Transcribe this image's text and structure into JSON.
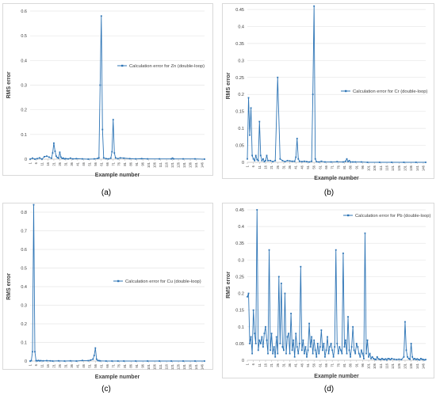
{
  "figure": {
    "panel_labels": [
      "(a)",
      "(b)",
      "(c)",
      "(d)"
    ]
  },
  "styles": {
    "series_color": "#2e75b6",
    "axis_color": "#bfbfbf",
    "grid_color": "#e6e6e6",
    "text_color": "#404040",
    "frame_color": "#d9d9d9"
  },
  "chart_data": [
    {
      "type": "line",
      "panel": "(a)",
      "xlabel": "Example number",
      "ylabel": "RMS error",
      "ylim": [
        0,
        0.6
      ],
      "yticks": [
        0,
        0.1,
        0.2,
        0.3,
        0.4,
        0.5,
        0.6
      ],
      "grid": true,
      "legend_position": "right",
      "x_tick_labels": [
        "1",
        "6",
        "11",
        "16",
        "21",
        "26",
        "31",
        "36",
        "41",
        "46",
        "51",
        "56",
        "61",
        "66",
        "71",
        "76",
        "81",
        "86",
        "91",
        "96",
        "101",
        "106",
        "111",
        "116",
        "121",
        "126",
        "131",
        "136",
        "141",
        "146"
      ],
      "series": [
        {
          "name": "Calculation error for  Zn (double-loop)",
          "x": [
            1,
            3,
            5,
            7,
            9,
            11,
            13,
            15,
            17,
            19,
            20,
            21,
            22,
            23,
            24,
            25,
            26,
            27,
            28,
            29,
            30,
            31,
            33,
            35,
            37,
            40,
            45,
            50,
            55,
            58,
            59,
            60,
            61,
            62,
            63,
            65,
            67,
            69,
            70,
            71,
            72,
            73,
            75,
            77,
            80,
            85,
            90,
            95,
            100,
            110,
            120,
            121,
            122,
            130,
            140,
            148
          ],
          "y": [
            0,
            0.004,
            0,
            0.002,
            0.005,
            0,
            0.01,
            0.012,
            0.008,
            0.004,
            0.025,
            0.065,
            0.032,
            0.012,
            0.006,
            0.004,
            0.028,
            0.008,
            0.003,
            0.004,
            0.001,
            0.002,
            0.001,
            0.004,
            0.001,
            0.002,
            0.001,
            0,
            0.001,
            0.003,
            0.005,
            0.3,
            0.58,
            0.12,
            0.005,
            0.002,
            0.001,
            0.004,
            0.03,
            0.16,
            0.025,
            0.005,
            0.002,
            0.005,
            0.004,
            0.002,
            0.001,
            0.002,
            0.001,
            0.001,
            0.001,
            0.004,
            0.001,
            0.001,
            0.001,
            0
          ]
        }
      ]
    },
    {
      "type": "line",
      "panel": "(b)",
      "xlabel": "Example number",
      "ylabel": "RMS error",
      "ylim": [
        0,
        0.45
      ],
      "yticks": [
        0,
        0.05,
        0.1,
        0.15,
        0.2,
        0.25,
        0.3,
        0.35,
        0.4,
        0.45
      ],
      "grid": true,
      "legend_position": "right",
      "x_tick_labels": [
        "1",
        "6",
        "11",
        "16",
        "21",
        "26",
        "31",
        "36",
        "41",
        "46",
        "51",
        "56",
        "61",
        "66",
        "71",
        "76",
        "81",
        "86",
        "91",
        "96",
        "101",
        "106",
        "111",
        "116",
        "121",
        "126",
        "131",
        "136",
        "141",
        "146"
      ],
      "series": [
        {
          "name": "Calculation error for  Cr (double-loop)",
          "x": [
            1,
            2,
            3,
            4,
            5,
            6,
            7,
            8,
            9,
            10,
            11,
            12,
            13,
            14,
            15,
            16,
            17,
            18,
            20,
            22,
            24,
            26,
            28,
            30,
            32,
            34,
            36,
            38,
            40,
            41,
            42,
            43,
            44,
            46,
            48,
            50,
            52,
            54,
            55,
            56,
            57,
            58,
            60,
            62,
            65,
            70,
            75,
            80,
            82,
            83,
            84,
            85,
            86,
            88,
            90,
            95,
            100,
            110,
            120,
            130,
            140,
            148
          ],
          "y": [
            0.01,
            0.19,
            0.08,
            0.16,
            0.02,
            0.01,
            0.005,
            0.02,
            0.008,
            0.005,
            0.12,
            0.02,
            0.005,
            0.01,
            0.002,
            0.005,
            0.02,
            0.005,
            0.005,
            0.002,
            0.005,
            0.25,
            0.01,
            0.005,
            0.002,
            0.005,
            0.004,
            0.003,
            0.003,
            0.015,
            0.07,
            0.01,
            0.003,
            0.002,
            0.003,
            0.002,
            0.001,
            0.003,
            0.2,
            0.46,
            0.01,
            0.002,
            0.001,
            0.003,
            0.001,
            0.001,
            0.002,
            0.001,
            0.003,
            0.01,
            0.002,
            0.005,
            0.001,
            0.001,
            0.001,
            0.001,
            0,
            0,
            0,
            0,
            0,
            0
          ]
        }
      ]
    },
    {
      "type": "line",
      "panel": "(c)",
      "xlabel": "Example number",
      "ylabel": "RMS error",
      "ylim": [
        0,
        0.8
      ],
      "yticks": [
        0,
        0.1,
        0.2,
        0.3,
        0.4,
        0.5,
        0.6,
        0.7,
        0.8
      ],
      "grid": true,
      "legend_position": "right",
      "x_tick_labels": [
        "1",
        "6",
        "11",
        "16",
        "21",
        "26",
        "31",
        "36",
        "41",
        "46",
        "51",
        "56",
        "61",
        "66",
        "71",
        "76",
        "81",
        "86",
        "91",
        "96",
        "101",
        "106",
        "111",
        "116",
        "121",
        "126",
        "131",
        "136",
        "141",
        "146"
      ],
      "series": [
        {
          "name": "Calculation error for  Cu (double-loop)",
          "x": [
            1,
            2,
            3,
            4,
            5,
            6,
            7,
            8,
            9,
            10,
            12,
            15,
            18,
            20,
            25,
            30,
            35,
            40,
            45,
            50,
            52,
            54,
            55,
            56,
            57,
            58,
            59,
            60,
            65,
            70,
            75,
            80,
            90,
            100,
            110,
            120,
            130,
            140,
            148
          ],
          "y": [
            0,
            0.002,
            0.05,
            0.84,
            0.05,
            0.002,
            0.001,
            0.003,
            0.001,
            0.002,
            0.001,
            0.002,
            0.001,
            0,
            0.001,
            0,
            0.001,
            0,
            0.003,
            0.002,
            0.005,
            0.01,
            0.03,
            0.07,
            0.01,
            0.003,
            0.002,
            0.001,
            0,
            0,
            0,
            0,
            0,
            0,
            0,
            0,
            0,
            0,
            0
          ]
        }
      ]
    },
    {
      "type": "line",
      "panel": "(d)",
      "xlabel": "Example number",
      "ylabel": "RMS error",
      "ylim": [
        0,
        0.45
      ],
      "yticks": [
        0,
        0.05,
        0.1,
        0.15,
        0.2,
        0.25,
        0.3,
        0.35,
        0.4,
        0.45
      ],
      "grid": true,
      "legend_position": "top-right",
      "x_tick_labels": [
        "1",
        "6",
        "11",
        "16",
        "21",
        "26",
        "31",
        "36",
        "41",
        "46",
        "51",
        "56",
        "61",
        "66",
        "71",
        "76",
        "81",
        "86",
        "91",
        "96",
        "101",
        "106",
        "111",
        "116",
        "121",
        "126",
        "131",
        "136",
        "141",
        "146"
      ],
      "series": [
        {
          "name": "Calculation error for  Pb (double-loop)",
          "x": [
            1,
            2,
            3,
            4,
            5,
            6,
            7,
            8,
            9,
            10,
            11,
            12,
            13,
            14,
            15,
            16,
            17,
            18,
            19,
            20,
            21,
            22,
            23,
            24,
            25,
            26,
            27,
            28,
            29,
            30,
            31,
            32,
            33,
            34,
            35,
            36,
            37,
            38,
            39,
            40,
            41,
            42,
            43,
            44,
            45,
            46,
            47,
            48,
            49,
            50,
            51,
            52,
            53,
            54,
            55,
            56,
            57,
            58,
            59,
            60,
            61,
            62,
            63,
            64,
            65,
            66,
            67,
            68,
            69,
            70,
            71,
            72,
            73,
            74,
            75,
            76,
            77,
            78,
            79,
            80,
            81,
            82,
            83,
            84,
            85,
            86,
            87,
            88,
            89,
            90,
            91,
            92,
            93,
            94,
            95,
            96,
            97,
            98,
            99,
            100,
            101,
            102,
            103,
            104,
            105,
            106,
            107,
            108,
            109,
            110,
            111,
            112,
            113,
            114,
            115,
            116,
            117,
            118,
            119,
            120,
            122,
            124,
            126,
            128,
            130,
            131,
            132,
            133,
            134,
            135,
            136,
            137,
            138,
            139,
            140,
            141,
            142,
            143,
            144,
            145,
            146,
            147,
            148
          ],
          "y": [
            0.19,
            0.2,
            0.05,
            0.07,
            0.02,
            0.15,
            0.08,
            0.05,
            0.45,
            0.03,
            0.06,
            0.05,
            0.07,
            0.04,
            0.08,
            0.1,
            0.06,
            0.02,
            0.33,
            0.03,
            0.08,
            0.02,
            0.04,
            0.01,
            0.07,
            0.02,
            0.25,
            0.05,
            0.23,
            0.04,
            0.03,
            0.2,
            0.02,
            0.07,
            0.08,
            0.02,
            0.14,
            0.03,
            0.06,
            0.01,
            0.08,
            0.04,
            0.02,
            0.05,
            0.28,
            0.03,
            0.06,
            0.02,
            0.04,
            0.01,
            0.03,
            0.11,
            0.04,
            0.07,
            0.02,
            0.06,
            0.03,
            0.01,
            0.05,
            0.02,
            0.04,
            0.09,
            0.03,
            0.05,
            0.01,
            0.03,
            0.07,
            0.02,
            0.04,
            0.05,
            0.03,
            0.01,
            0.04,
            0.33,
            0.05,
            0.02,
            0.04,
            0.03,
            0.02,
            0.32,
            0.04,
            0.06,
            0.02,
            0.13,
            0.03,
            0.01,
            0.04,
            0.1,
            0.03,
            0.02,
            0.05,
            0.04,
            0.02,
            0.01,
            0.03,
            0.02,
            0.005,
            0.38,
            0.02,
            0.06,
            0.01,
            0.02,
            0.005,
            0.01,
            0.005,
            0.003,
            0.002,
            0.01,
            0.004,
            0.003,
            0.002,
            0.005,
            0.003,
            0.002,
            0.004,
            0.001,
            0.005,
            0.004,
            0.002,
            0.005,
            0.003,
            0.002,
            0.003,
            0.002,
            0.01,
            0.115,
            0.03,
            0.01,
            0.005,
            0.003,
            0.05,
            0.01,
            0.003,
            0.005,
            0.002,
            0.004,
            0.002,
            0.001,
            0.005,
            0.003,
            0.002,
            0.001,
            0.002
          ]
        }
      ]
    }
  ]
}
